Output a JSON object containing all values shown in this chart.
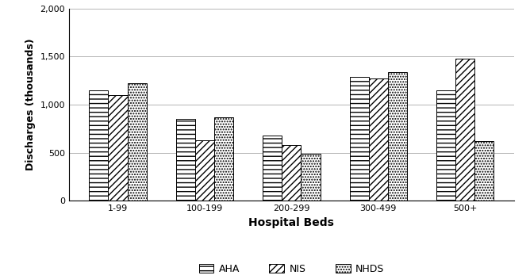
{
  "categories": [
    "1-99",
    "100-199",
    "200-299",
    "300-499",
    "500+"
  ],
  "series": {
    "AHA": [
      1150,
      850,
      680,
      1290,
      1150
    ],
    "NIS": [
      1100,
      630,
      580,
      1270,
      1480
    ],
    "NHDS": [
      1220,
      870,
      490,
      1340,
      620
    ]
  },
  "series_order": [
    "AHA",
    "NIS",
    "NHDS"
  ],
  "xlabel": "Hospital Beds",
  "ylabel": "Discharges (thousands)",
  "ylim": [
    0,
    2000
  ],
  "yticks": [
    0,
    500,
    1000,
    1500,
    2000
  ],
  "ytick_labels": [
    "0",
    "500",
    "1,000",
    "1,500",
    "2,000"
  ],
  "bar_colors": {
    "AHA": "#ffffff",
    "NIS": "#ffffff",
    "NHDS": "#ffffff"
  },
  "hatches": {
    "AHA": "---",
    "NIS": "////",
    "NHDS": "....."
  },
  "background_color": "#ffffff",
  "grid_color": "#aaaaaa",
  "bar_width": 0.22,
  "xlabel_fontsize": 10,
  "ylabel_fontsize": 9,
  "tick_fontsize": 8,
  "legend_fontsize": 9
}
